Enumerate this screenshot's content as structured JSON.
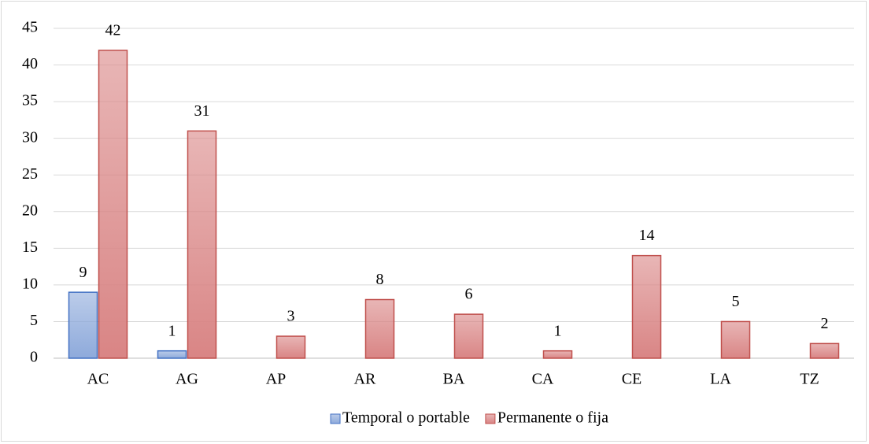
{
  "chart_data": {
    "type": "bar",
    "categories": [
      "AC",
      "AG",
      "AP",
      "AR",
      "BA",
      "CA",
      "CE",
      "LA",
      "TZ"
    ],
    "series": [
      {
        "name": "Temporal o portable",
        "color": "#8eaadb",
        "stroke": "#4472c4",
        "values": [
          9,
          1,
          null,
          null,
          null,
          null,
          null,
          null,
          null
        ]
      },
      {
        "name": "Permanente o fija",
        "color": "#d98585",
        "stroke": "#c0504d",
        "values": [
          42,
          31,
          3,
          8,
          6,
          1,
          14,
          5,
          2
        ]
      }
    ],
    "ylim": [
      0,
      45
    ],
    "yticks": [
      0,
      5,
      10,
      15,
      20,
      25,
      30,
      35,
      40,
      45
    ],
    "grid": true,
    "legend": "bottom"
  }
}
